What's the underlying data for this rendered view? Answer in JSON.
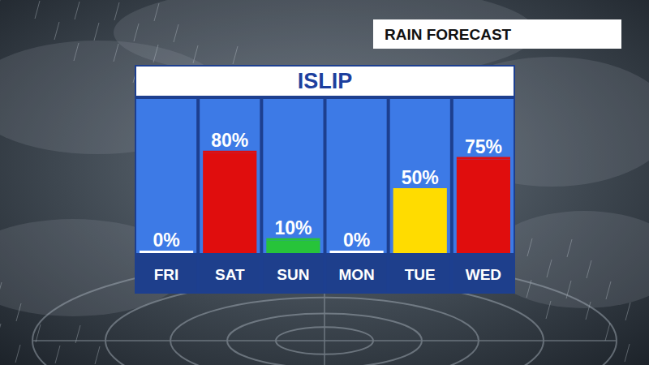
{
  "chart_data": {
    "type": "bar",
    "title": "ISLIP",
    "subtitle": "RAIN FORECAST",
    "categories": [
      "FRI",
      "SAT",
      "SUN",
      "MON",
      "TUE",
      "WED"
    ],
    "values": [
      0,
      80,
      10,
      0,
      50,
      75
    ],
    "value_labels": [
      "0%",
      "80%",
      "10%",
      "0%",
      "50%",
      "75%"
    ],
    "colors": [
      "#ffffff",
      "#e00d0d",
      "#27c43a",
      "#ffffff",
      "#ffdc00",
      "#e00d0d"
    ],
    "ylim": [
      0,
      100
    ],
    "data_labels": true,
    "tick_labels": "x",
    "grid": false
  }
}
